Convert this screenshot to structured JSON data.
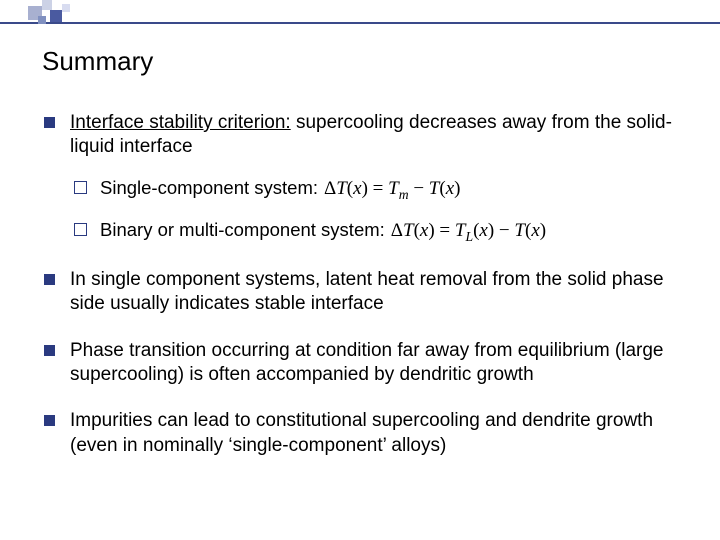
{
  "title": "Summary",
  "colors": {
    "bullet": "#2a3a80",
    "line": "#3a4a8a",
    "text": "#000000",
    "background": "#ffffff"
  },
  "typography": {
    "title_fontsize": 26,
    "body_fontsize": 19,
    "sub_fontsize": 18.5,
    "font_family": "Arial"
  },
  "items": [
    {
      "prefix": "Interface stability criterion:",
      "text": " supercooling decreases away from the solid-liquid interface",
      "sub": [
        {
          "label": "Single-component system:",
          "formula_html": "Δ<i>T</i>(<i>x</i>) = <i>T</i><sub>m</sub> − <i>T</i>(<i>x</i>)"
        },
        {
          "label": "Binary or multi-component system:",
          "formula_html": "Δ<i>T</i>(<i>x</i>) = <i>T</i><sub>L</sub>(<i>x</i>) − <i>T</i>(<i>x</i>)"
        }
      ]
    },
    {
      "text": "In single component systems, latent heat removal from the solid phase side usually indicates stable interface"
    },
    {
      "text": "Phase transition occurring at condition far away from equilibrium (large supercooling) is often accompanied by dendritic growth"
    },
    {
      "text": "Impurities can lead to constitutional supercooling and dendrite growth (even in nominally ‘single-component’ alloys)"
    }
  ]
}
